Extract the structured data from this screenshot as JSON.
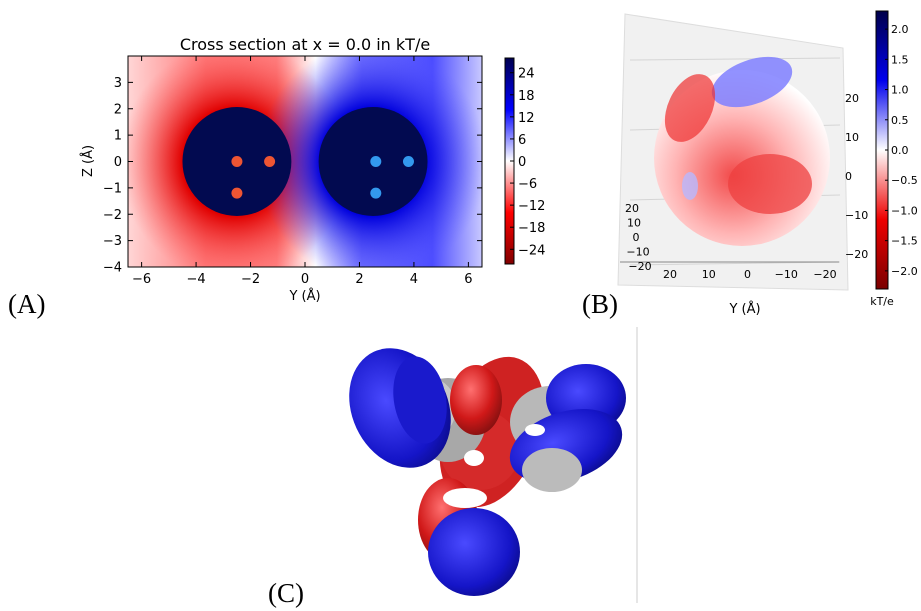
{
  "chart_data": [
    {
      "panel": "(A)",
      "type": "heatmap",
      "title": "Cross section at x = 0.0 in kT/e",
      "xlabel": "Y (Å)",
      "ylabel": "Z (Å)",
      "xlim": [
        -6.5,
        6.5
      ],
      "ylim": [
        -4,
        4
      ],
      "x_ticks": [
        "−6",
        "−4",
        "−2",
        "0",
        "2",
        "4",
        "6"
      ],
      "y_ticks": [
        "3",
        "2",
        "1",
        "0",
        "−1",
        "−2",
        "−3",
        "−4"
      ],
      "colorbar_ticks": [
        "24",
        "18",
        "12",
        "6",
        "0",
        "−6",
        "−12",
        "−18",
        "−24"
      ],
      "colorbar_range": [
        -28,
        28
      ],
      "colors": {
        "negative": "#b00000",
        "zero": "#ffffff",
        "positive": "#000060",
        "mid_red": "#ff0000",
        "mid_blue": "#1010ff"
      },
      "spheres": [
        {
          "center": [
            -2.5,
            0
          ],
          "radius": 2.0,
          "fill": "#020a50"
        },
        {
          "center": [
            2.5,
            0
          ],
          "radius": 2.0,
          "fill": "#020a50"
        }
      ],
      "charges": [
        {
          "y": -2.5,
          "z": 0.0,
          "color": "#ee5533"
        },
        {
          "y": -1.3,
          "z": 0.0,
          "color": "#ee5533"
        },
        {
          "y": -2.5,
          "z": -1.2,
          "color": "#ee5533"
        },
        {
          "y": 2.6,
          "z": 0.0,
          "color": "#3399ee"
        },
        {
          "y": 3.8,
          "z": 0.0,
          "color": "#3399ee"
        },
        {
          "y": 2.6,
          "z": -1.2,
          "color": "#3399ee"
        }
      ]
    },
    {
      "panel": "(B)",
      "type": "surface",
      "xlabel": "Y (Å)",
      "x_ticks": [
        "20",
        "10",
        "0",
        "−10",
        "−20"
      ],
      "right_ticks": [
        "20",
        "10",
        "0",
        "−10",
        "−20"
      ],
      "left_ticks": [
        "20",
        "10",
        "0",
        "−10",
        "−20"
      ],
      "colorbar_ticks": [
        "2.0",
        "1.5",
        "1.0",
        "0.5",
        "0.0",
        "−0.5",
        "−1.0",
        "−1.5",
        "−2.0"
      ],
      "colorbar_label": "kT/e",
      "colorbar_range": [
        -2.3,
        2.3
      ]
    },
    {
      "panel": "(C)",
      "type": "surface",
      "colors": {
        "positive": "#1a1acc",
        "negative": "#cc1a1a",
        "atoms": "#b0b0b0"
      }
    }
  ]
}
